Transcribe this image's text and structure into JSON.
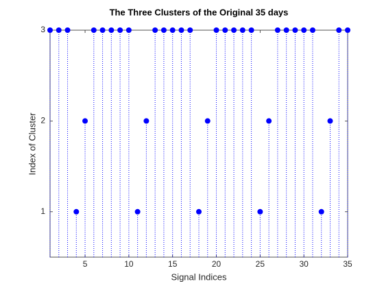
{
  "chart_data": {
    "type": "stem",
    "title": "The Three Clusters of the Original 35 days",
    "x_label": "Signal Indices",
    "y_label": "Index of Cluster",
    "x": [
      1,
      2,
      3,
      4,
      5,
      6,
      7,
      8,
      9,
      10,
      11,
      12,
      13,
      14,
      15,
      16,
      17,
      18,
      19,
      20,
      21,
      22,
      23,
      24,
      25,
      26,
      27,
      28,
      29,
      30,
      31,
      32,
      33,
      34,
      35
    ],
    "values": [
      3,
      3,
      3,
      1,
      2,
      3,
      3,
      3,
      3,
      3,
      1,
      2,
      3,
      3,
      3,
      3,
      3,
      1,
      2,
      3,
      3,
      3,
      3,
      3,
      1,
      2,
      3,
      3,
      3,
      3,
      3,
      1,
      2,
      3,
      3
    ],
    "color": "#0000ff",
    "xlim": [
      1,
      35
    ],
    "xticks": [
      5,
      10,
      15,
      20,
      25,
      30,
      35
    ],
    "ylim": [
      0.5,
      3
    ],
    "yticks": [
      1,
      2,
      3
    ]
  }
}
